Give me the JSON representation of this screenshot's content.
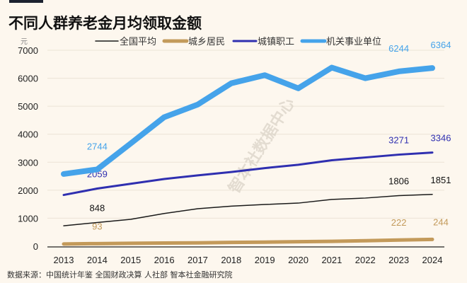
{
  "title": "不同人群养老金月均领取金额",
  "source": "数据来源：中国统计年鉴 全国财政决算 人社部 智本社金融研究院",
  "watermark": "智本社数据中心",
  "chart_data": {
    "type": "line",
    "ylabel": "元",
    "ylim": [
      0,
      7000
    ],
    "yticks": [
      0,
      1000,
      2000,
      3000,
      4000,
      5000,
      6000,
      7000
    ],
    "grid": true,
    "legend_position": "top",
    "categories": [
      "2013",
      "2014",
      "2015",
      "2016",
      "2017",
      "2018",
      "2019",
      "2020",
      "2021",
      "2022",
      "2023",
      "2024"
    ],
    "series": [
      {
        "name": "全国平均",
        "color": "#1a1a1a",
        "width": 1.5,
        "values": [
          730,
          848,
          960,
          1170,
          1340,
          1430,
          1490,
          1540,
          1670,
          1720,
          1806,
          1851
        ],
        "labels": {
          "1": "848",
          "10": "1806",
          "11": "1851"
        }
      },
      {
        "name": "城乡居民",
        "color": "#c39a5a",
        "width": 5,
        "values": [
          80,
          93,
          105,
          115,
          120,
          135,
          145,
          160,
          175,
          195,
          222,
          244
        ],
        "labels": {
          "1": "93",
          "10": "222",
          "11": "244"
        }
      },
      {
        "name": "城镇职工",
        "color": "#2f2fb0",
        "width": 3,
        "values": [
          1830,
          2059,
          2230,
          2400,
          2530,
          2650,
          2790,
          2910,
          3070,
          3170,
          3271,
          3346
        ],
        "labels": {
          "1": "2059",
          "10": "3271",
          "11": "3346"
        }
      },
      {
        "name": "机关事业单位",
        "color": "#45a3ea",
        "width": 8,
        "values": [
          2580,
          2744,
          3670,
          4610,
          5060,
          5820,
          6110,
          5640,
          6380,
          6000,
          6244,
          6364
        ],
        "labels": {
          "1": "2744",
          "10": "6244",
          "11": "6364"
        }
      }
    ]
  }
}
